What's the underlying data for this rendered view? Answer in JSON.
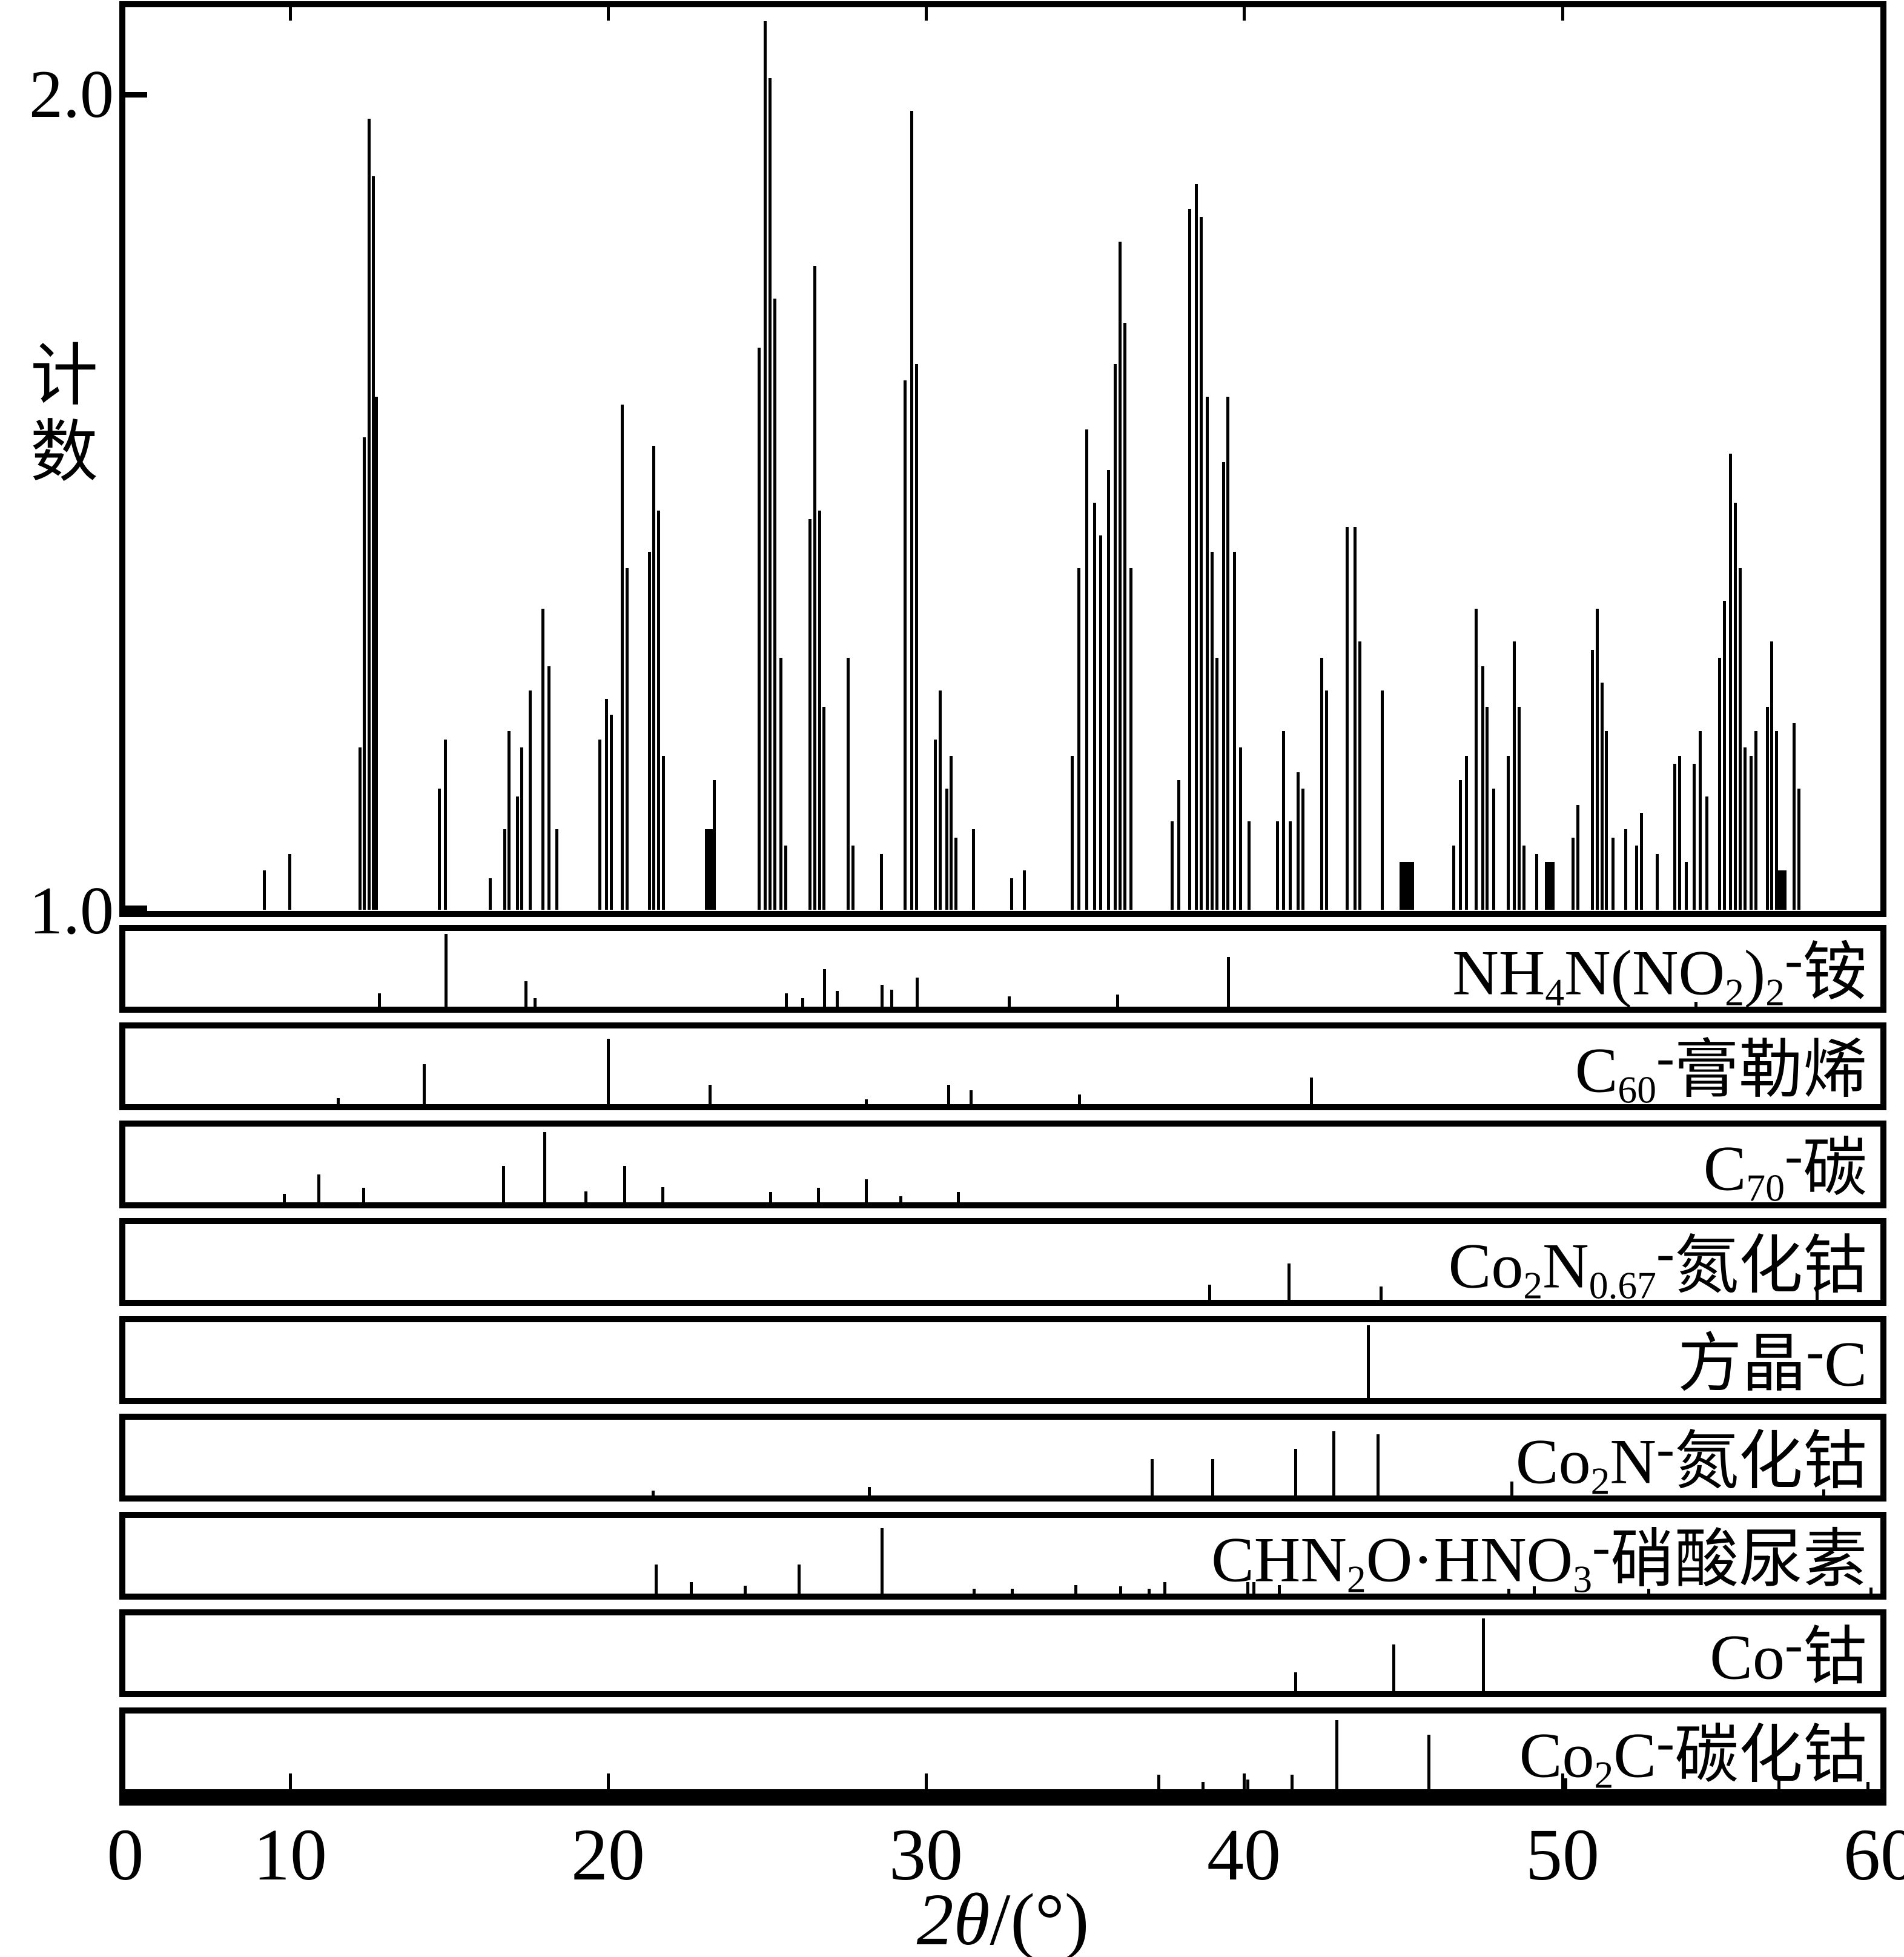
{
  "figure": {
    "colors": {
      "foreground": "#000000",
      "background": "#ffffff"
    },
    "y_axis": {
      "label": "计数",
      "ticks": [
        {
          "label": "2.0"
        },
        {
          "label": "1.0"
        }
      ]
    },
    "x_axis": {
      "label_italic": "2θ",
      "label_rest": "/(°)",
      "ticks": [
        {
          "label": "0",
          "x": 207
        },
        {
          "label": "10",
          "x": 479
        },
        {
          "label": "20",
          "x": 1004
        },
        {
          "label": "30",
          "x": 1529
        },
        {
          "label": "40",
          "x": 2054
        },
        {
          "label": "50",
          "x": 2580
        },
        {
          "label": "60",
          "x": 3105
        }
      ]
    }
  },
  "chart_data": {
    "type": "line",
    "description": "XRD pattern: measured counts vs 2-theta (top), with 9 reference stick patterns of identified phases below",
    "title": "",
    "xlabel": "2θ/(°)",
    "ylabel": "计数",
    "x_range": [
      4.8,
      60
    ],
    "y_range_main": [
      1.0,
      2.1
    ],
    "grid": false,
    "main_pattern_peaks": [
      [
        9.2,
        1.05
      ],
      [
        10.0,
        1.07
      ],
      [
        12.2,
        1.2
      ],
      [
        12.35,
        1.58
      ],
      [
        12.5,
        1.97
      ],
      [
        12.62,
        1.9
      ],
      [
        12.72,
        1.63
      ],
      [
        14.7,
        1.15
      ],
      [
        14.9,
        1.21
      ],
      [
        16.3,
        1.04
      ],
      [
        16.75,
        1.1
      ],
      [
        16.9,
        1.22
      ],
      [
        17.15,
        1.14
      ],
      [
        17.3,
        1.2
      ],
      [
        17.55,
        1.27
      ],
      [
        17.95,
        1.37
      ],
      [
        18.15,
        1.3
      ],
      [
        18.4,
        1.1
      ],
      [
        19.75,
        1.21
      ],
      [
        19.95,
        1.26
      ],
      [
        20.1,
        1.24
      ],
      [
        20.45,
        1.62
      ],
      [
        20.6,
        1.42
      ],
      [
        21.3,
        1.44
      ],
      [
        21.45,
        1.57
      ],
      [
        21.6,
        1.49
      ],
      [
        21.75,
        1.19
      ],
      [
        23.2,
        1.1,
        0.3
      ],
      [
        23.35,
        1.16
      ],
      [
        24.75,
        1.69
      ],
      [
        24.95,
        2.09
      ],
      [
        25.1,
        2.02
      ],
      [
        25.25,
        1.75
      ],
      [
        25.45,
        1.31
      ],
      [
        25.6,
        1.08
      ],
      [
        26.35,
        1.48
      ],
      [
        26.5,
        1.79
      ],
      [
        26.65,
        1.49
      ],
      [
        26.8,
        1.25
      ],
      [
        27.55,
        1.31
      ],
      [
        27.7,
        1.08
      ],
      [
        28.6,
        1.07
      ],
      [
        29.35,
        1.65
      ],
      [
        29.55,
        1.98
      ],
      [
        29.7,
        1.67
      ],
      [
        30.3,
        1.21
      ],
      [
        30.45,
        1.27
      ],
      [
        30.65,
        1.15
      ],
      [
        30.8,
        1.19
      ],
      [
        30.95,
        1.09
      ],
      [
        31.5,
        1.1
      ],
      [
        32.7,
        1.04
      ],
      [
        33.1,
        1.05
      ],
      [
        34.6,
        1.19
      ],
      [
        34.8,
        1.42
      ],
      [
        35.05,
        1.59
      ],
      [
        35.3,
        1.5
      ],
      [
        35.5,
        1.46
      ],
      [
        35.75,
        1.54
      ],
      [
        35.95,
        1.67
      ],
      [
        36.1,
        1.82
      ],
      [
        36.25,
        1.72
      ],
      [
        36.45,
        1.42
      ],
      [
        37.75,
        1.11
      ],
      [
        37.95,
        1.16
      ],
      [
        38.3,
        1.86
      ],
      [
        38.5,
        1.89
      ],
      [
        38.65,
        1.85
      ],
      [
        38.85,
        1.63
      ],
      [
        39.0,
        1.44
      ],
      [
        39.15,
        1.31
      ],
      [
        39.35,
        1.55
      ],
      [
        39.5,
        1.63
      ],
      [
        39.7,
        1.44
      ],
      [
        39.9,
        1.2
      ],
      [
        40.15,
        1.11
      ],
      [
        41.05,
        1.11
      ],
      [
        41.25,
        1.22
      ],
      [
        41.45,
        1.11
      ],
      [
        41.7,
        1.17
      ],
      [
        41.85,
        1.15
      ],
      [
        42.45,
        1.31
      ],
      [
        42.6,
        1.27
      ],
      [
        43.25,
        1.47
      ],
      [
        43.5,
        1.47
      ],
      [
        43.65,
        1.33
      ],
      [
        44.35,
        1.27
      ],
      [
        45.1,
        1.06,
        0.45
      ],
      [
        46.6,
        1.08
      ],
      [
        46.8,
        1.16
      ],
      [
        47.0,
        1.19
      ],
      [
        47.3,
        1.37
      ],
      [
        47.5,
        1.3
      ],
      [
        47.65,
        1.25
      ],
      [
        47.85,
        1.15
      ],
      [
        48.3,
        1.19
      ],
      [
        48.5,
        1.33
      ],
      [
        48.65,
        1.25
      ],
      [
        48.8,
        1.08
      ],
      [
        49.2,
        1.07
      ],
      [
        49.6,
        1.06,
        0.3
      ],
      [
        50.35,
        1.09
      ],
      [
        50.5,
        1.13
      ],
      [
        50.95,
        1.32
      ],
      [
        51.1,
        1.37
      ],
      [
        51.25,
        1.28
      ],
      [
        51.4,
        1.22
      ],
      [
        51.6,
        1.09
      ],
      [
        52.0,
        1.1
      ],
      [
        52.35,
        1.08
      ],
      [
        52.5,
        1.12
      ],
      [
        53.0,
        1.07
      ],
      [
        53.55,
        1.18
      ],
      [
        53.7,
        1.19
      ],
      [
        53.9,
        1.06
      ],
      [
        54.15,
        1.18
      ],
      [
        54.35,
        1.22
      ],
      [
        54.55,
        1.14
      ],
      [
        54.95,
        1.31
      ],
      [
        55.1,
        1.38
      ],
      [
        55.3,
        1.56
      ],
      [
        55.45,
        1.5
      ],
      [
        55.6,
        1.42
      ],
      [
        55.75,
        1.2
      ],
      [
        55.95,
        1.19
      ],
      [
        56.1,
        1.22
      ],
      [
        56.45,
        1.25
      ],
      [
        56.6,
        1.33
      ],
      [
        56.75,
        1.22
      ],
      [
        56.9,
        1.05,
        0.3
      ],
      [
        57.3,
        1.23
      ],
      [
        57.45,
        1.15
      ]
    ],
    "reference_panels": [
      {
        "label_text": "NH4N(NO2)2-铵",
        "formula": [
          [
            "t",
            "NH"
          ],
          [
            "s",
            "4"
          ],
          [
            "t",
            "N(NO"
          ],
          [
            "s",
            "2"
          ],
          [
            "t",
            ")"
          ],
          [
            "s",
            "2"
          ],
          [
            "d",
            "-"
          ],
          [
            "t",
            "铵"
          ]
        ],
        "peaks": [
          [
            12.8,
            0.18
          ],
          [
            14.9,
            1.0
          ],
          [
            17.4,
            0.35
          ],
          [
            17.7,
            0.12
          ],
          [
            25.6,
            0.18
          ],
          [
            26.1,
            0.12
          ],
          [
            26.8,
            0.52
          ],
          [
            27.2,
            0.22
          ],
          [
            28.6,
            0.3
          ],
          [
            28.9,
            0.23
          ],
          [
            29.7,
            0.4
          ],
          [
            32.6,
            0.14
          ],
          [
            36.0,
            0.17
          ],
          [
            39.5,
            0.68
          ],
          [
            54.2,
            0.06
          ]
        ]
      },
      {
        "label_text": "C60-膏勒烯",
        "formula": [
          [
            "t",
            "C"
          ],
          [
            "s",
            "60"
          ],
          [
            "d",
            "-"
          ],
          [
            "t",
            "膏勒烯"
          ]
        ],
        "peaks": [
          [
            11.5,
            0.08
          ],
          [
            14.2,
            0.55
          ],
          [
            20.0,
            0.9
          ],
          [
            23.2,
            0.27
          ],
          [
            28.1,
            0.07
          ],
          [
            30.7,
            0.27
          ],
          [
            31.4,
            0.19
          ],
          [
            34.8,
            0.13
          ],
          [
            42.1,
            0.37
          ]
        ]
      },
      {
        "label_text": "C70-碳",
        "formula": [
          [
            "t",
            "C"
          ],
          [
            "s",
            "70"
          ],
          [
            "d",
            "-"
          ],
          [
            "t",
            "碳"
          ]
        ],
        "peaks": [
          [
            9.8,
            0.12
          ],
          [
            10.9,
            0.38
          ],
          [
            12.3,
            0.2
          ],
          [
            16.7,
            0.5
          ],
          [
            18.0,
            0.97
          ],
          [
            19.3,
            0.15
          ],
          [
            20.5,
            0.5
          ],
          [
            21.7,
            0.21
          ],
          [
            25.1,
            0.14
          ],
          [
            26.6,
            0.2
          ],
          [
            28.1,
            0.32
          ],
          [
            29.2,
            0.08
          ],
          [
            31.0,
            0.14
          ]
        ]
      },
      {
        "label_text": "Co2N0.67-氮化钴",
        "formula": [
          [
            "t",
            "Co"
          ],
          [
            "s",
            "2"
          ],
          [
            "t",
            "N"
          ],
          [
            "s",
            "0.67"
          ],
          [
            "d",
            "-"
          ],
          [
            "t",
            "氮化钴"
          ]
        ],
        "peaks": [
          [
            38.9,
            0.21
          ],
          [
            41.4,
            0.5
          ],
          [
            44.3,
            0.18
          ],
          [
            58.0,
            0.14
          ]
        ]
      },
      {
        "label_text": "方晶-C",
        "formula": [
          [
            "t",
            "方晶"
          ],
          [
            "d",
            "-"
          ],
          [
            "t",
            "C"
          ]
        ],
        "peaks": [
          [
            43.9,
            1.0
          ]
        ]
      },
      {
        "label_text": "Co2N-氮化钴",
        "formula": [
          [
            "t",
            "Co"
          ],
          [
            "s",
            "2"
          ],
          [
            "t",
            "N"
          ],
          [
            "d",
            "-"
          ],
          [
            "t",
            "氮化钴"
          ]
        ],
        "peaks": [
          [
            21.4,
            0.07
          ],
          [
            28.2,
            0.12
          ],
          [
            37.1,
            0.5
          ],
          [
            39.0,
            0.5
          ],
          [
            41.6,
            0.64
          ],
          [
            42.8,
            0.88
          ],
          [
            44.2,
            0.84
          ],
          [
            48.4,
            0.19
          ],
          [
            58.2,
            0.08
          ]
        ]
      },
      {
        "label_text": "CHN2O·HNO3-硝酸尿素",
        "formula": [
          [
            "t",
            "CHN"
          ],
          [
            "s",
            "2"
          ],
          [
            "t",
            "O·HNO"
          ],
          [
            "s",
            "3"
          ],
          [
            "d",
            "-"
          ],
          [
            "t",
            "硝酸尿素"
          ]
        ],
        "peaks": [
          [
            21.5,
            0.4
          ],
          [
            22.6,
            0.16
          ],
          [
            24.3,
            0.11
          ],
          [
            26.0,
            0.4
          ],
          [
            28.6,
            0.9
          ],
          [
            31.5,
            0.06
          ],
          [
            32.7,
            0.06
          ],
          [
            34.7,
            0.12
          ],
          [
            36.1,
            0.1
          ],
          [
            37.0,
            0.06
          ],
          [
            37.5,
            0.16
          ],
          [
            40.1,
            0.16
          ],
          [
            40.3,
            0.16
          ],
          [
            41.1,
            0.12
          ],
          [
            48.3,
            0.06
          ],
          [
            49.1,
            0.1
          ],
          [
            52.7,
            0.06
          ],
          [
            59.7,
            0.08
          ]
        ]
      },
      {
        "label_text": "Co-钴",
        "formula": [
          [
            "t",
            "Co"
          ],
          [
            "d",
            "-"
          ],
          [
            "t",
            "钴"
          ]
        ],
        "peaks": [
          [
            41.6,
            0.26
          ],
          [
            44.7,
            0.64
          ],
          [
            47.5,
            1.0
          ]
        ]
      },
      {
        "label_text": "Co2C-碳化钴",
        "formula": [
          [
            "t",
            "Co"
          ],
          [
            "s",
            "2"
          ],
          [
            "t",
            "C"
          ],
          [
            "d",
            "-"
          ],
          [
            "t",
            "碳化钴"
          ]
        ],
        "peaks": [
          [
            37.3,
            0.2
          ],
          [
            38.7,
            0.1
          ],
          [
            40.1,
            0.13
          ],
          [
            41.5,
            0.2
          ],
          [
            42.9,
            0.95
          ],
          [
            45.8,
            0.75
          ],
          [
            50.1,
            0.15
          ],
          [
            56.8,
            0.17
          ],
          [
            59.6,
            0.1
          ]
        ]
      }
    ]
  }
}
